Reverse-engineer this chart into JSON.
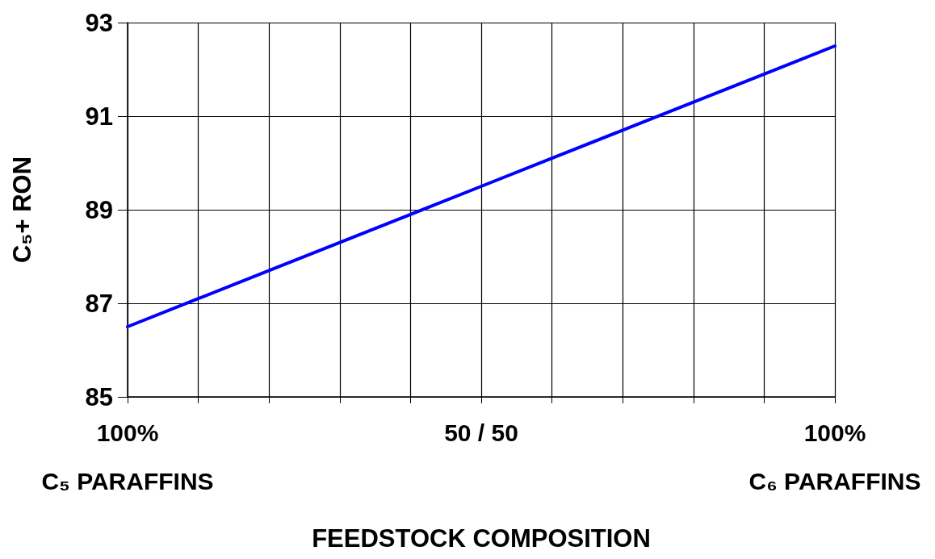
{
  "chart_data": {
    "type": "line",
    "xlabel": "FEEDSTOCK COMPOSITION",
    "ylabel": "C₅+ RON",
    "categories": [
      "100%\nC₅ PARAFFINS",
      null,
      null,
      null,
      null,
      "50 / 50",
      null,
      null,
      null,
      null,
      "100%\nC₆ PARAFFINS"
    ],
    "series": [
      {
        "color": "#0000ff",
        "values": [
          86.5,
          87.1,
          87.7,
          88.3,
          88.9,
          89.5,
          90.1,
          90.7,
          91.3,
          91.9,
          92.5
        ]
      }
    ],
    "ylim": [
      85,
      93
    ],
    "yticks": [
      85,
      87,
      89,
      91,
      93
    ],
    "grid": true,
    "marker": "none",
    "line_style": "solid"
  }
}
